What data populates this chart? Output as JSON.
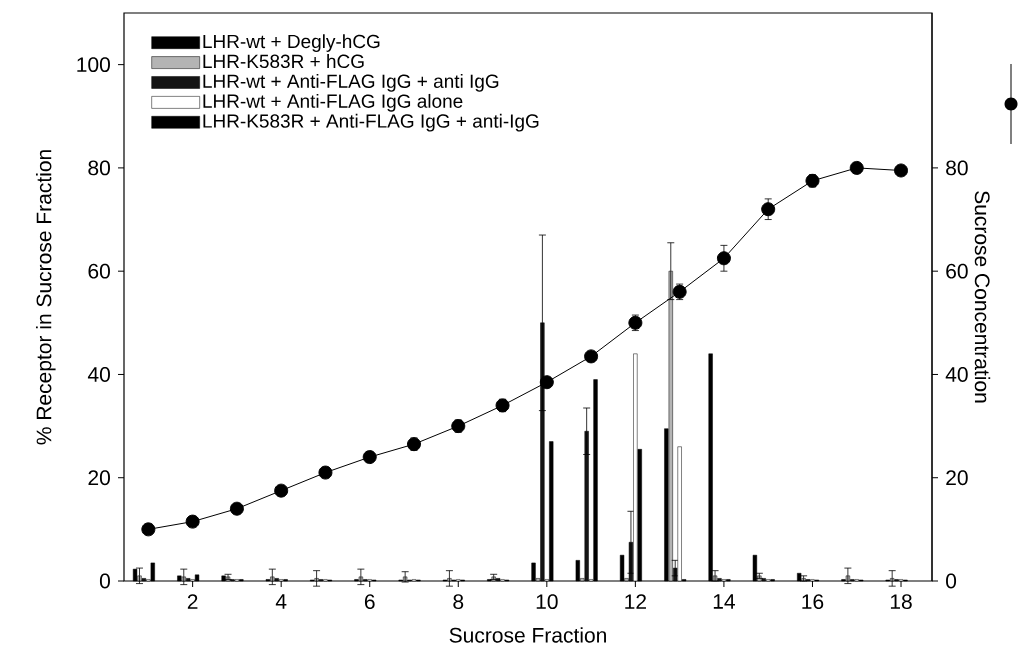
{
  "chart_data": {
    "type": "bar",
    "xlabel": "Sucrose Fraction",
    "ylabel": "% Receptor in Sucrose Fraction",
    "y2label": "Sucrose Concentration",
    "xlim": [
      0.45,
      18.7
    ],
    "xticks": [
      2,
      4,
      6,
      8,
      10,
      12,
      14,
      16,
      18
    ],
    "ylim": [
      0,
      110
    ],
    "yticks": [
      0,
      20,
      40,
      60,
      80,
      100
    ],
    "y2lim": [
      0,
      110
    ],
    "y2ticks": [
      0,
      20,
      40,
      60,
      80
    ],
    "legend": "top left",
    "grid": false,
    "series": [
      {
        "name": "LHR-wt + Degly-hCG",
        "color": "#000000",
        "x": [
          0.7,
          1.7,
          2.7,
          3.7,
          4.7,
          5.7,
          6.7,
          7.7,
          8.7,
          9.7,
          10.7,
          11.7,
          12.7,
          13.7,
          14.7,
          15.7,
          16.7,
          17.7
        ],
        "values": [
          2.3,
          1,
          1,
          0.3,
          0.2,
          0.3,
          0.2,
          0.2,
          0.3,
          3.5,
          4,
          5,
          29.5,
          44,
          5,
          1.5,
          0.3,
          0.2
        ]
      },
      {
        "name": "LHR-K583R + hCG",
        "color": "#b4b4b4",
        "x": [
          0.8,
          1.8,
          2.8,
          3.8,
          4.8,
          5.8,
          6.8,
          7.8,
          8.8,
          9.8,
          10.8,
          11.8,
          12.8,
          13.8,
          14.8,
          15.8,
          16.8,
          17.8
        ],
        "values": [
          1,
          0.8,
          0.8,
          0.8,
          0.5,
          0.8,
          0.8,
          0.5,
          0.8,
          0.5,
          0.5,
          0.5,
          60,
          1,
          1,
          0.5,
          1,
          0.5
        ],
        "errors": [
          1.5,
          1.5,
          0.5,
          1.5,
          1.5,
          1.5,
          1,
          1.5,
          0.5,
          null,
          null,
          null,
          5.5,
          1,
          0.5,
          0.5,
          1.5,
          1.5
        ]
      },
      {
        "name": "LHR-wt + Anti-FLAG IgG + anti IgG",
        "color": "#141414",
        "x": [
          0.9,
          1.9,
          2.9,
          3.9,
          4.9,
          5.9,
          6.9,
          7.9,
          8.9,
          9.9,
          10.9,
          11.9,
          12.9,
          13.9,
          14.9,
          15.9,
          16.9,
          17.9
        ],
        "values": [
          0.5,
          0.5,
          0.3,
          0.5,
          0.3,
          0.3,
          0.2,
          0.2,
          0.5,
          50,
          29,
          7.5,
          2.5,
          0.5,
          0.5,
          0.3,
          0.3,
          0.3
        ],
        "errors": [
          null,
          null,
          null,
          null,
          null,
          null,
          null,
          null,
          null,
          17,
          4.5,
          6,
          1.5,
          null,
          null,
          null,
          null,
          null
        ]
      },
      {
        "name": "LHR-wt + Anti-FLAG IgG alone",
        "color": "#ffffff",
        "x": [
          1,
          2,
          3,
          4,
          5,
          6,
          7,
          8,
          9,
          10,
          11,
          12,
          13,
          14,
          15,
          16,
          17,
          18
        ],
        "values": [
          0.3,
          0.3,
          0.3,
          0.3,
          0.3,
          0.3,
          0.3,
          0.3,
          0.3,
          0.3,
          0.3,
          44,
          26,
          0.3,
          0.3,
          0.3,
          0.3,
          0.3
        ]
      },
      {
        "name": "LHR-K583R + Anti-FLAG IgG + anti-IgG",
        "color": "#000000",
        "x": [
          1.1,
          2.1,
          3.1,
          4.1,
          5.1,
          6.1,
          7.1,
          8.1,
          9.1,
          10.1,
          11.1,
          12.1,
          13.1,
          14.1,
          15.1,
          16.1,
          17.1,
          18.1
        ],
        "values": [
          3.5,
          1.2,
          0.3,
          0.3,
          0.2,
          0.2,
          0.2,
          0.2,
          0.2,
          27,
          39,
          25.5,
          0.3,
          0.3,
          0.3,
          0.2,
          0.2,
          0.2
        ]
      },
      {
        "type": "line",
        "axis": "y2",
        "color": "#000000",
        "marker": "circle",
        "line_style": "solid",
        "x": [
          1,
          2,
          3,
          4,
          5,
          6,
          7,
          8,
          9,
          10,
          11,
          12,
          13,
          14,
          15,
          16,
          17,
          18
        ],
        "values": [
          10,
          11.5,
          14,
          17.5,
          21,
          24,
          26.5,
          30,
          34,
          38.5,
          43.5,
          50,
          56,
          62.5,
          72,
          77.5,
          80,
          79.5
        ],
        "errors": [
          null,
          null,
          null,
          null,
          null,
          null,
          1.2,
          1.2,
          1.2,
          null,
          null,
          1.5,
          1.5,
          2.5,
          2,
          1.2,
          null,
          null
        ]
      }
    ]
  }
}
